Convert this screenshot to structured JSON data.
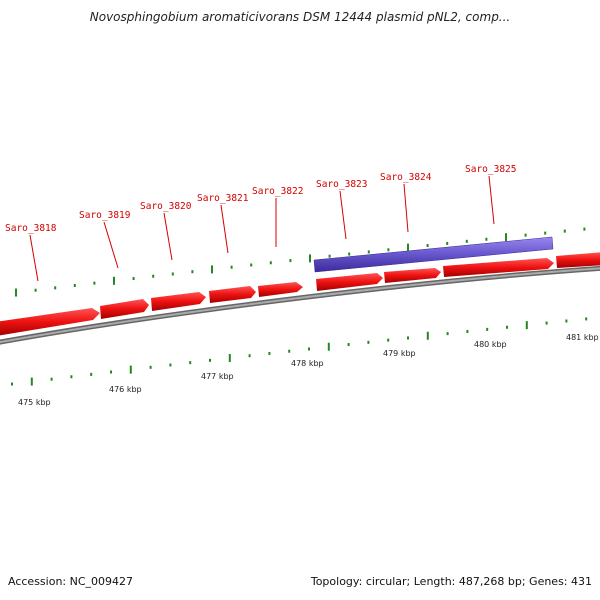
{
  "header": {
    "title": "Novosphingobium aromaticivorans DSM 12444 plasmid pNL2, comp..."
  },
  "footer": {
    "accession": "Accession: NC_009427",
    "summary": "Topology: circular; Length: 487,268 bp; Genes: 431"
  },
  "genes": [
    {
      "label": "Saro_3818"
    },
    {
      "label": "Saro_3819"
    },
    {
      "label": "Saro_3820"
    },
    {
      "label": "Saro_3821"
    },
    {
      "label": "Saro_3822"
    },
    {
      "label": "Saro_3823"
    },
    {
      "label": "Saro_3824"
    },
    {
      "label": "Saro_3825"
    }
  ],
  "scale_labels": [
    "475 kbp",
    "476 kbp",
    "477 kbp",
    "478 kbp",
    "479 kbp",
    "480 kbp",
    "481 kbp"
  ],
  "colors": {
    "gene_fill": "#ee1111",
    "gene_label": "#d40000",
    "feature_fill": "#6655cc",
    "backbone": "#888888",
    "tick": "#228822"
  }
}
